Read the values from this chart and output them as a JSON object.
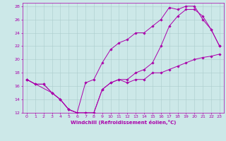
{
  "xlabel": "Windchill (Refroidissement éolien,°C)",
  "bg_color": "#cce8e8",
  "grid_color": "#aacccc",
  "line_color": "#aa00aa",
  "spine_color": "#aa00aa",
  "xlim": [
    -0.5,
    23.5
  ],
  "ylim": [
    12,
    28.5
  ],
  "xticks": [
    0,
    1,
    2,
    3,
    4,
    5,
    6,
    7,
    8,
    9,
    10,
    11,
    12,
    13,
    14,
    15,
    16,
    17,
    18,
    19,
    20,
    21,
    22,
    23
  ],
  "yticks": [
    12,
    14,
    16,
    18,
    20,
    22,
    24,
    26,
    28
  ],
  "line1_x": [
    0,
    1,
    2,
    3,
    4,
    5,
    6,
    7,
    8,
    9,
    10,
    11,
    12,
    13,
    14,
    15,
    16,
    17,
    18,
    19,
    20,
    21,
    22,
    23
  ],
  "line1_y": [
    17,
    16.3,
    16.3,
    15,
    14,
    12.5,
    12,
    12,
    12,
    15.5,
    16.5,
    17,
    16.5,
    17,
    17,
    18,
    18,
    18.5,
    19,
    19.5,
    20,
    20.3,
    20.5,
    20.8
  ],
  "line2_x": [
    0,
    1,
    2,
    3,
    4,
    5,
    6,
    7,
    8,
    9,
    10,
    11,
    12,
    13,
    14,
    15,
    16,
    17,
    18,
    19,
    20,
    21,
    22,
    23
  ],
  "line2_y": [
    17,
    16.3,
    16.3,
    15,
    14,
    12.5,
    12,
    16.5,
    17,
    19.5,
    21.5,
    22.5,
    23,
    24,
    24,
    25,
    26,
    27.8,
    27.5,
    28,
    28,
    26,
    24.5,
    22
  ],
  "line3_x": [
    0,
    3,
    4,
    5,
    6,
    7,
    8,
    9,
    10,
    11,
    12,
    13,
    14,
    15,
    16,
    17,
    18,
    19,
    20,
    21,
    22,
    23
  ],
  "line3_y": [
    17,
    15,
    14,
    12.5,
    12,
    12,
    12,
    15.5,
    16.5,
    17,
    17,
    18,
    18.5,
    19.5,
    22,
    25,
    26.5,
    27.5,
    27.5,
    26.5,
    24.5,
    22
  ],
  "tick_fontsize": 4.5,
  "xlabel_fontsize": 5.0,
  "marker_size": 1.8,
  "line_width": 0.7
}
